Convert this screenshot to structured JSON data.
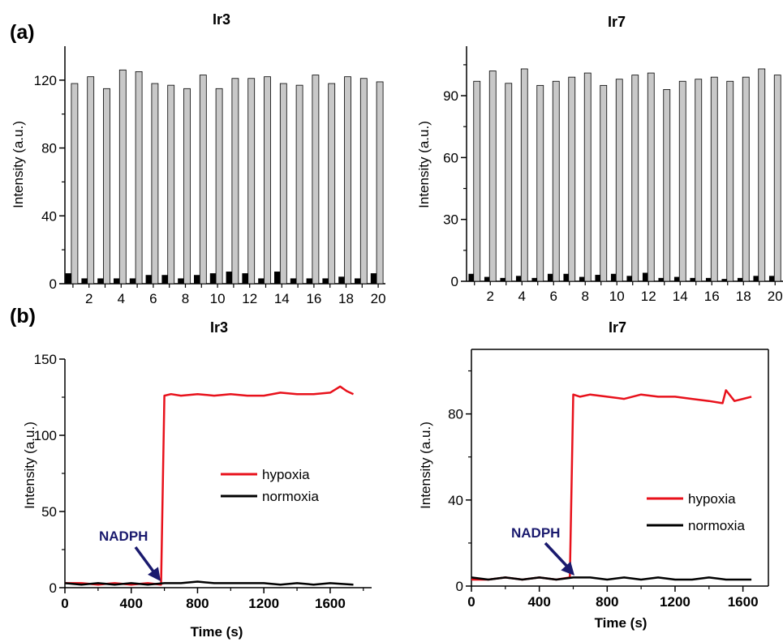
{
  "panel_labels": {
    "a": "(a)",
    "b": "(b)"
  },
  "colors": {
    "bar_gray": "#c8c8c8",
    "bar_black": "#000000",
    "hypoxia": "#e8111b",
    "normoxia": "#000000",
    "arrow": "#1a1a6e"
  },
  "chart_data": [
    {
      "type": "bar",
      "title": "Ir3",
      "ylabel": "Intensity (a.u.)",
      "xlabel": "",
      "ylim": [
        0,
        140
      ],
      "yticks": [
        0,
        40,
        80,
        120
      ],
      "xticks": [
        2,
        4,
        6,
        8,
        10,
        12,
        14,
        16,
        18,
        20
      ],
      "categories": [
        1,
        2,
        3,
        4,
        5,
        6,
        7,
        8,
        9,
        10,
        11,
        12,
        13,
        14,
        15,
        16,
        17,
        18,
        19,
        20
      ],
      "series": [
        {
          "values": [
            6,
            3,
            3,
            3,
            3,
            5,
            5,
            3,
            5,
            6,
            7,
            6,
            3,
            7,
            3,
            3,
            3,
            4,
            3,
            6
          ]
        },
        {
          "values": [
            118,
            122,
            115,
            126,
            125,
            118,
            117,
            115,
            123,
            115,
            121,
            121,
            122,
            118,
            117,
            123,
            118,
            122,
            121,
            119
          ]
        }
      ]
    },
    {
      "type": "bar",
      "title": "Ir7",
      "ylabel": "Intensity (a.u.)",
      "xlabel": "",
      "ylim": [
        0,
        114
      ],
      "yticks": [
        0,
        30,
        60,
        90
      ],
      "xticks": [
        2,
        4,
        6,
        8,
        10,
        12,
        14,
        16,
        18,
        20
      ],
      "categories": [
        1,
        2,
        3,
        4,
        5,
        6,
        7,
        8,
        9,
        10,
        11,
        12,
        13,
        14,
        15,
        16,
        17,
        18,
        19,
        20
      ],
      "series": [
        {
          "values": [
            3.5,
            2,
            1.5,
            2.5,
            1.5,
            3.5,
            3.5,
            2,
            3,
            3.5,
            2.5,
            4,
            1.5,
            2,
            1.5,
            1.5,
            1,
            1.5,
            2.5,
            2.5
          ]
        },
        {
          "values": [
            97,
            102,
            96,
            103,
            95,
            97,
            99,
            101,
            95,
            98,
            100,
            101,
            93,
            97,
            98,
            99,
            97,
            99,
            103,
            100
          ]
        }
      ]
    },
    {
      "type": "line",
      "title": "Ir3",
      "xlabel": "Time (s)",
      "ylabel": "Intensity (a.u.)",
      "xlim": [
        0,
        1850
      ],
      "ylim": [
        0,
        150
      ],
      "xticks": [
        0,
        400,
        800,
        1200,
        1600
      ],
      "yticks": [
        0,
        50,
        100,
        150
      ],
      "legend": "center-right",
      "annotation": {
        "text": "NADPH",
        "x": 580
      },
      "series": [
        {
          "name": "hypoxia",
          "x": [
            0,
            100,
            200,
            300,
            400,
            500,
            580,
            600,
            640,
            700,
            800,
            900,
            1000,
            1100,
            1200,
            1300,
            1400,
            1500,
            1600,
            1660,
            1700,
            1740
          ],
          "y": [
            3,
            3,
            2,
            3,
            2,
            3,
            2,
            126,
            127,
            126,
            127,
            126,
            127,
            126,
            126,
            128,
            127,
            127,
            128,
            132,
            129,
            127
          ]
        },
        {
          "name": "normoxia",
          "x": [
            0,
            100,
            200,
            300,
            400,
            500,
            600,
            700,
            800,
            900,
            1000,
            1100,
            1200,
            1300,
            1400,
            1500,
            1600,
            1740
          ],
          "y": [
            3,
            2,
            3,
            2,
            3,
            2,
            3,
            3,
            4,
            3,
            3,
            3,
            3,
            2,
            3,
            2,
            3,
            2
          ]
        }
      ]
    },
    {
      "type": "line",
      "title": "Ir7",
      "xlabel": "Time (s)",
      "ylabel": "Intensity (a.u.)",
      "xlim": [
        0,
        1750
      ],
      "ylim": [
        0,
        110
      ],
      "xticks": [
        0,
        400,
        800,
        1200,
        1600
      ],
      "yticks": [
        0,
        40,
        80
      ],
      "legend": "center-right",
      "annotation": {
        "text": "NADPH",
        "x": 580
      },
      "series": [
        {
          "name": "hypoxia",
          "x": [
            0,
            100,
            200,
            300,
            400,
            500,
            580,
            600,
            640,
            700,
            800,
            900,
            1000,
            1100,
            1200,
            1300,
            1400,
            1480,
            1500,
            1550,
            1600,
            1650
          ],
          "y": [
            3,
            3,
            4,
            3,
            4,
            3,
            4,
            89,
            88,
            89,
            88,
            87,
            89,
            88,
            88,
            87,
            86,
            85,
            91,
            86,
            87,
            88
          ]
        },
        {
          "name": "normoxia",
          "x": [
            0,
            100,
            200,
            300,
            400,
            500,
            600,
            700,
            800,
            900,
            1000,
            1100,
            1200,
            1300,
            1400,
            1500,
            1650
          ],
          "y": [
            4,
            3,
            4,
            3,
            4,
            3,
            4,
            4,
            3,
            4,
            3,
            4,
            3,
            3,
            4,
            3,
            3
          ]
        }
      ]
    }
  ]
}
